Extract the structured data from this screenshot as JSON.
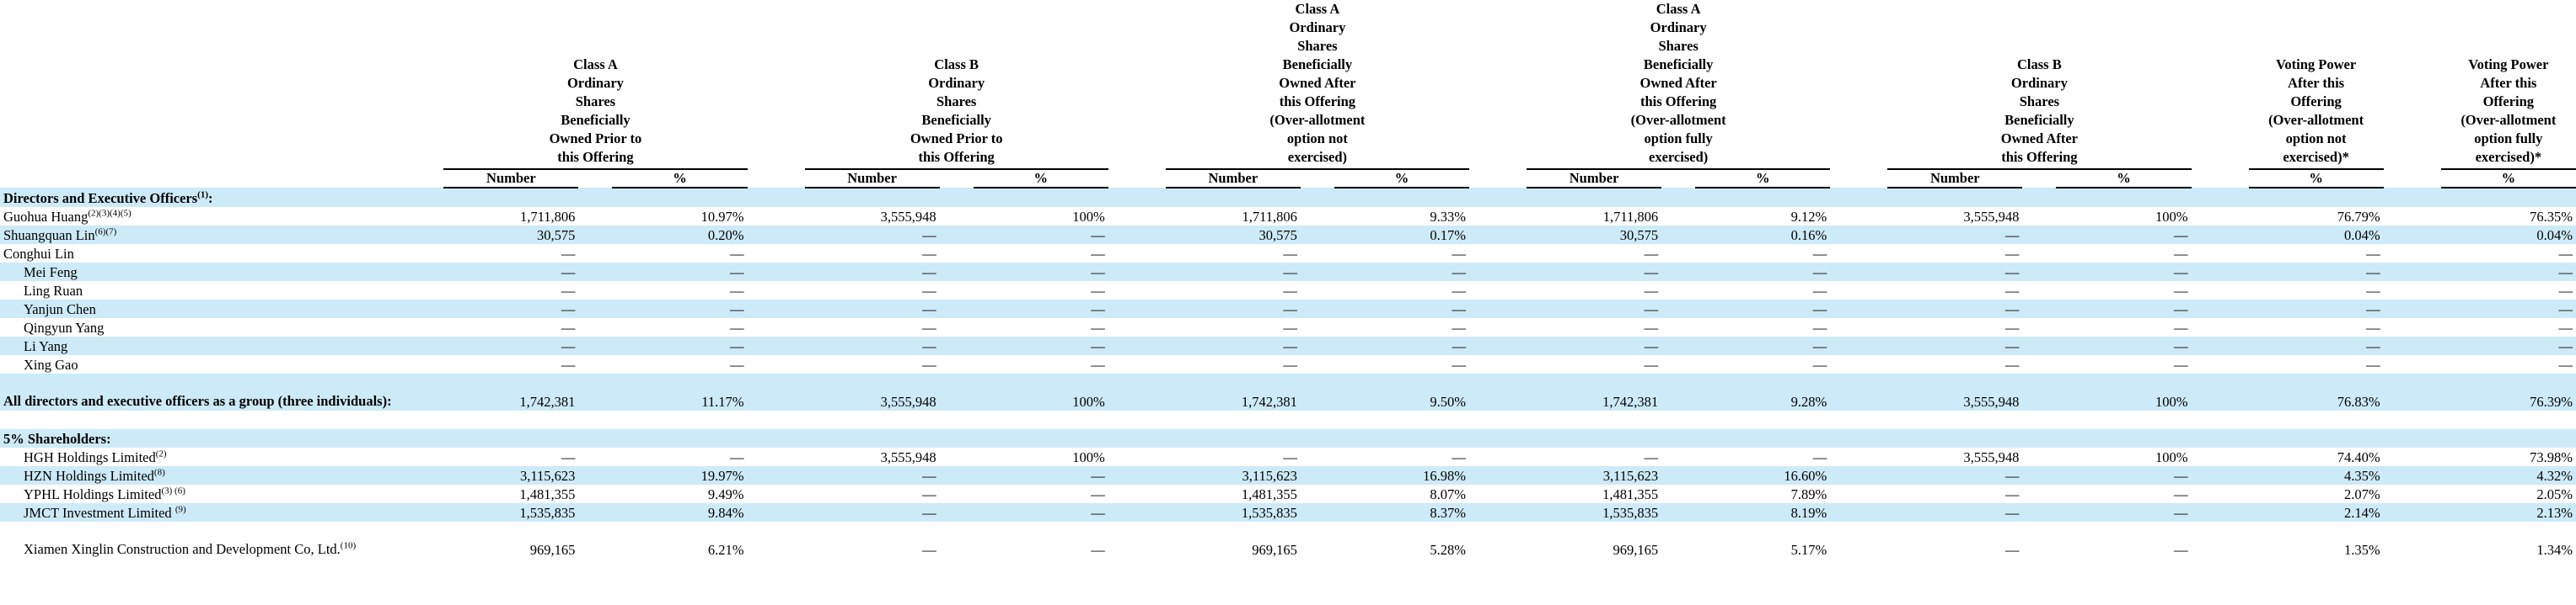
{
  "headers": {
    "groups": [
      "Class A Ordinary Shares Beneficially Owned Prior to this Offering",
      "Class B Ordinary Shares Beneficially Owned Prior to this Offering",
      "Class A Ordinary Shares Beneficially Owned After this Offering (Over-allotment option not exercised)",
      "Class A Ordinary Shares Beneficially Owned After this Offering (Over-allotment option fully exercised)",
      "Class B Ordinary Shares Beneficially Owned After this Offering",
      "Voting Power After this Offering (Over-allotment option not exercised)*",
      "Voting Power After this Offering (Over-allotment option fully exercised)*"
    ],
    "g1": [
      "Class A",
      "Ordinary",
      "Shares",
      "Beneficially",
      "Owned Prior to",
      "this Offering"
    ],
    "g2": [
      "Class B",
      "Ordinary",
      "Shares",
      "Beneficially",
      "Owned Prior to",
      "this Offering"
    ],
    "g3": [
      "Class A",
      "Ordinary",
      "Shares",
      "Beneficially",
      "Owned After",
      "this Offering",
      "(Over-allotment",
      "option not",
      "exercised)"
    ],
    "g4": [
      "Class A",
      "Ordinary",
      "Shares",
      "Beneficially",
      "Owned After",
      "this Offering",
      "(Over-allotment",
      "option fully",
      "exercised)"
    ],
    "g5": [
      "Class B",
      "Ordinary",
      "Shares",
      "Beneficially",
      "Owned After",
      "this Offering"
    ],
    "g6": [
      "Voting Power",
      "After this",
      "Offering",
      "(Over-allotment",
      "option not",
      "exercised)*"
    ],
    "g7": [
      "Voting Power",
      "After this",
      "Offering",
      "(Over-allotment",
      "option fully",
      "exercised)*"
    ],
    "number": "Number",
    "pct": "%"
  },
  "sections": {
    "directors": "Directors and Executive Officers",
    "directors_sup": "(1)",
    "directors_colon": ":",
    "shareholders": "5% Shareholders:"
  },
  "rows": [
    {
      "name": "Guohua Huang",
      "sup": "(2)(3)(4)(5)",
      "indent": false,
      "band": false,
      "cells": [
        "1,711,806",
        "10.97%",
        "3,555,948",
        "100%",
        "1,711,806",
        "9.33%",
        "1,711,806",
        "9.12%",
        "3,555,948",
        "100%",
        "76.79%",
        "76.35%"
      ]
    },
    {
      "name": "Shuangquan Lin",
      "sup": "(6)(7)",
      "indent": false,
      "band": true,
      "cells": [
        "30,575",
        "0.20%",
        "—",
        "—",
        "30,575",
        "0.17%",
        "30,575",
        "0.16%",
        "—",
        "—",
        "0.04%",
        "0.04%"
      ]
    },
    {
      "name": "Conghui Lin",
      "sup": "",
      "indent": false,
      "band": false,
      "cells": [
        "—",
        "—",
        "—",
        "—",
        "—",
        "—",
        "—",
        "—",
        "—",
        "—",
        "—",
        "—"
      ]
    },
    {
      "name": "Mei Feng",
      "sup": "",
      "indent": true,
      "band": true,
      "cells": [
        "—",
        "—",
        "—",
        "—",
        "—",
        "—",
        "—",
        "—",
        "—",
        "—",
        "—",
        "—"
      ]
    },
    {
      "name": "Ling Ruan",
      "sup": "",
      "indent": true,
      "band": false,
      "cells": [
        "—",
        "—",
        "—",
        "—",
        "—",
        "—",
        "—",
        "—",
        "—",
        "—",
        "—",
        "—"
      ]
    },
    {
      "name": "Yanjun Chen",
      "sup": "",
      "indent": true,
      "band": true,
      "cells": [
        "—",
        "—",
        "—",
        "—",
        "—",
        "—",
        "—",
        "—",
        "—",
        "—",
        "—",
        "—"
      ]
    },
    {
      "name": "Qingyun Yang",
      "sup": "",
      "indent": true,
      "band": false,
      "cells": [
        "—",
        "—",
        "—",
        "—",
        "—",
        "—",
        "—",
        "—",
        "—",
        "—",
        "—",
        "—"
      ]
    },
    {
      "name": "Li Yang",
      "sup": "",
      "indent": true,
      "band": true,
      "cells": [
        "—",
        "—",
        "—",
        "—",
        "—",
        "—",
        "—",
        "—",
        "—",
        "—",
        "—",
        "—"
      ]
    },
    {
      "name": "Xing Gao",
      "sup": "",
      "indent": true,
      "band": false,
      "cells": [
        "—",
        "—",
        "—",
        "—",
        "—",
        "—",
        "—",
        "—",
        "—",
        "—",
        "—",
        "—"
      ]
    }
  ],
  "group_row": {
    "name": "All directors and executive officers as a group (three individuals):",
    "cells": [
      "1,742,381",
      "11.17%",
      "3,555,948",
      "100%",
      "1,742,381",
      "9.50%",
      "1,742,381",
      "9.28%",
      "3,555,948",
      "100%",
      "76.83%",
      "76.39%"
    ]
  },
  "holders": [
    {
      "name": "HGH Holdings Limited",
      "sup": "(2)",
      "band": false,
      "cells": [
        "—",
        "—",
        "3,555,948",
        "100%",
        "—",
        "—",
        "—",
        "—",
        "3,555,948",
        "100%",
        "74.40%",
        "73.98%"
      ]
    },
    {
      "name": "HZN Holdings Limited",
      "sup": "(8)",
      "band": true,
      "cells": [
        "3,115,623",
        "19.97%",
        "—",
        "—",
        "3,115,623",
        "16.98%",
        "3,115,623",
        "16.60%",
        "—",
        "—",
        "4.35%",
        "4.32%"
      ]
    },
    {
      "name": "YPHL Holdings Limited",
      "sup": "(3) (6)",
      "band": false,
      "cells": [
        "1,481,355",
        "9.49%",
        "—",
        "—",
        "1,481,355",
        "8.07%",
        "1,481,355",
        "7.89%",
        "—",
        "—",
        "2.07%",
        "2.05%"
      ]
    },
    {
      "name": "JMCT Investment Limited ",
      "sup": "(9)",
      "band": true,
      "cells": [
        "1,535,835",
        "9.84%",
        "—",
        "—",
        "1,535,835",
        "8.37%",
        "1,535,835",
        "8.19%",
        "—",
        "—",
        "2.14%",
        "2.13%"
      ]
    }
  ],
  "last_row": {
    "name": "Xiamen Xinglin Construction and Development Co, Ltd.",
    "sup": "(10)",
    "cells": [
      "969,165",
      "6.21%",
      "—",
      "—",
      "969,165",
      "5.28%",
      "969,165",
      "5.17%",
      "—",
      "—",
      "1.35%",
      "1.34%"
    ]
  }
}
